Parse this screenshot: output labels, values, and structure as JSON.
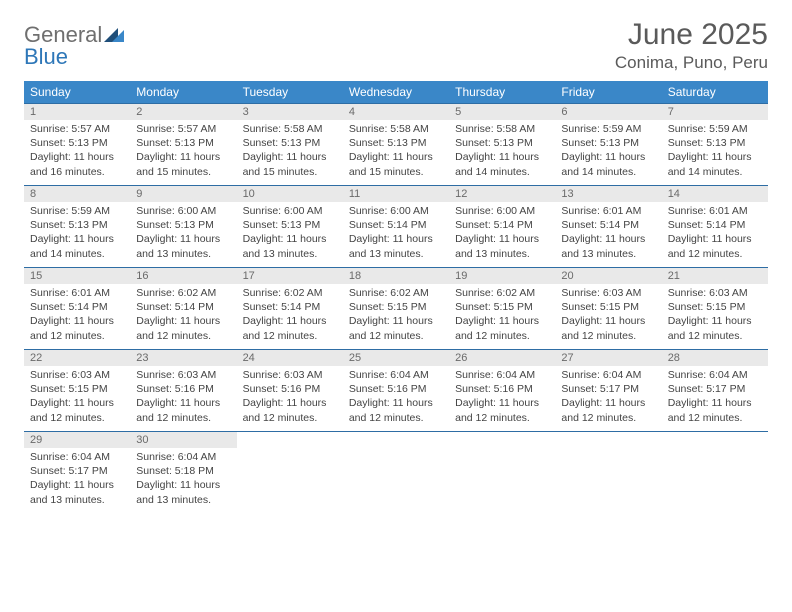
{
  "logo": {
    "general": "General",
    "blue": "Blue",
    "mark_color_dark": "#1f4e79",
    "mark_color_light": "#3a87c8"
  },
  "title": "June 2025",
  "location": "Conima, Puno, Peru",
  "colors": {
    "header_bg": "#3a87c8",
    "header_text": "#ffffff",
    "row_border": "#2e6da4",
    "daynum_bg": "#e9e9e9",
    "text": "#444444"
  },
  "weekdays": [
    "Sunday",
    "Monday",
    "Tuesday",
    "Wednesday",
    "Thursday",
    "Friday",
    "Saturday"
  ],
  "weeks": [
    [
      {
        "n": "1",
        "sr": "Sunrise: 5:57 AM",
        "ss": "Sunset: 5:13 PM",
        "d1": "Daylight: 11 hours",
        "d2": "and 16 minutes."
      },
      {
        "n": "2",
        "sr": "Sunrise: 5:57 AM",
        "ss": "Sunset: 5:13 PM",
        "d1": "Daylight: 11 hours",
        "d2": "and 15 minutes."
      },
      {
        "n": "3",
        "sr": "Sunrise: 5:58 AM",
        "ss": "Sunset: 5:13 PM",
        "d1": "Daylight: 11 hours",
        "d2": "and 15 minutes."
      },
      {
        "n": "4",
        "sr": "Sunrise: 5:58 AM",
        "ss": "Sunset: 5:13 PM",
        "d1": "Daylight: 11 hours",
        "d2": "and 15 minutes."
      },
      {
        "n": "5",
        "sr": "Sunrise: 5:58 AM",
        "ss": "Sunset: 5:13 PM",
        "d1": "Daylight: 11 hours",
        "d2": "and 14 minutes."
      },
      {
        "n": "6",
        "sr": "Sunrise: 5:59 AM",
        "ss": "Sunset: 5:13 PM",
        "d1": "Daylight: 11 hours",
        "d2": "and 14 minutes."
      },
      {
        "n": "7",
        "sr": "Sunrise: 5:59 AM",
        "ss": "Sunset: 5:13 PM",
        "d1": "Daylight: 11 hours",
        "d2": "and 14 minutes."
      }
    ],
    [
      {
        "n": "8",
        "sr": "Sunrise: 5:59 AM",
        "ss": "Sunset: 5:13 PM",
        "d1": "Daylight: 11 hours",
        "d2": "and 14 minutes."
      },
      {
        "n": "9",
        "sr": "Sunrise: 6:00 AM",
        "ss": "Sunset: 5:13 PM",
        "d1": "Daylight: 11 hours",
        "d2": "and 13 minutes."
      },
      {
        "n": "10",
        "sr": "Sunrise: 6:00 AM",
        "ss": "Sunset: 5:13 PM",
        "d1": "Daylight: 11 hours",
        "d2": "and 13 minutes."
      },
      {
        "n": "11",
        "sr": "Sunrise: 6:00 AM",
        "ss": "Sunset: 5:14 PM",
        "d1": "Daylight: 11 hours",
        "d2": "and 13 minutes."
      },
      {
        "n": "12",
        "sr": "Sunrise: 6:00 AM",
        "ss": "Sunset: 5:14 PM",
        "d1": "Daylight: 11 hours",
        "d2": "and 13 minutes."
      },
      {
        "n": "13",
        "sr": "Sunrise: 6:01 AM",
        "ss": "Sunset: 5:14 PM",
        "d1": "Daylight: 11 hours",
        "d2": "and 13 minutes."
      },
      {
        "n": "14",
        "sr": "Sunrise: 6:01 AM",
        "ss": "Sunset: 5:14 PM",
        "d1": "Daylight: 11 hours",
        "d2": "and 12 minutes."
      }
    ],
    [
      {
        "n": "15",
        "sr": "Sunrise: 6:01 AM",
        "ss": "Sunset: 5:14 PM",
        "d1": "Daylight: 11 hours",
        "d2": "and 12 minutes."
      },
      {
        "n": "16",
        "sr": "Sunrise: 6:02 AM",
        "ss": "Sunset: 5:14 PM",
        "d1": "Daylight: 11 hours",
        "d2": "and 12 minutes."
      },
      {
        "n": "17",
        "sr": "Sunrise: 6:02 AM",
        "ss": "Sunset: 5:14 PM",
        "d1": "Daylight: 11 hours",
        "d2": "and 12 minutes."
      },
      {
        "n": "18",
        "sr": "Sunrise: 6:02 AM",
        "ss": "Sunset: 5:15 PM",
        "d1": "Daylight: 11 hours",
        "d2": "and 12 minutes."
      },
      {
        "n": "19",
        "sr": "Sunrise: 6:02 AM",
        "ss": "Sunset: 5:15 PM",
        "d1": "Daylight: 11 hours",
        "d2": "and 12 minutes."
      },
      {
        "n": "20",
        "sr": "Sunrise: 6:03 AM",
        "ss": "Sunset: 5:15 PM",
        "d1": "Daylight: 11 hours",
        "d2": "and 12 minutes."
      },
      {
        "n": "21",
        "sr": "Sunrise: 6:03 AM",
        "ss": "Sunset: 5:15 PM",
        "d1": "Daylight: 11 hours",
        "d2": "and 12 minutes."
      }
    ],
    [
      {
        "n": "22",
        "sr": "Sunrise: 6:03 AM",
        "ss": "Sunset: 5:15 PM",
        "d1": "Daylight: 11 hours",
        "d2": "and 12 minutes."
      },
      {
        "n": "23",
        "sr": "Sunrise: 6:03 AM",
        "ss": "Sunset: 5:16 PM",
        "d1": "Daylight: 11 hours",
        "d2": "and 12 minutes."
      },
      {
        "n": "24",
        "sr": "Sunrise: 6:03 AM",
        "ss": "Sunset: 5:16 PM",
        "d1": "Daylight: 11 hours",
        "d2": "and 12 minutes."
      },
      {
        "n": "25",
        "sr": "Sunrise: 6:04 AM",
        "ss": "Sunset: 5:16 PM",
        "d1": "Daylight: 11 hours",
        "d2": "and 12 minutes."
      },
      {
        "n": "26",
        "sr": "Sunrise: 6:04 AM",
        "ss": "Sunset: 5:16 PM",
        "d1": "Daylight: 11 hours",
        "d2": "and 12 minutes."
      },
      {
        "n": "27",
        "sr": "Sunrise: 6:04 AM",
        "ss": "Sunset: 5:17 PM",
        "d1": "Daylight: 11 hours",
        "d2": "and 12 minutes."
      },
      {
        "n": "28",
        "sr": "Sunrise: 6:04 AM",
        "ss": "Sunset: 5:17 PM",
        "d1": "Daylight: 11 hours",
        "d2": "and 12 minutes."
      }
    ],
    [
      {
        "n": "29",
        "sr": "Sunrise: 6:04 AM",
        "ss": "Sunset: 5:17 PM",
        "d1": "Daylight: 11 hours",
        "d2": "and 13 minutes."
      },
      {
        "n": "30",
        "sr": "Sunrise: 6:04 AM",
        "ss": "Sunset: 5:18 PM",
        "d1": "Daylight: 11 hours",
        "d2": "and 13 minutes."
      },
      {
        "empty": true
      },
      {
        "empty": true
      },
      {
        "empty": true
      },
      {
        "empty": true
      },
      {
        "empty": true
      }
    ]
  ]
}
